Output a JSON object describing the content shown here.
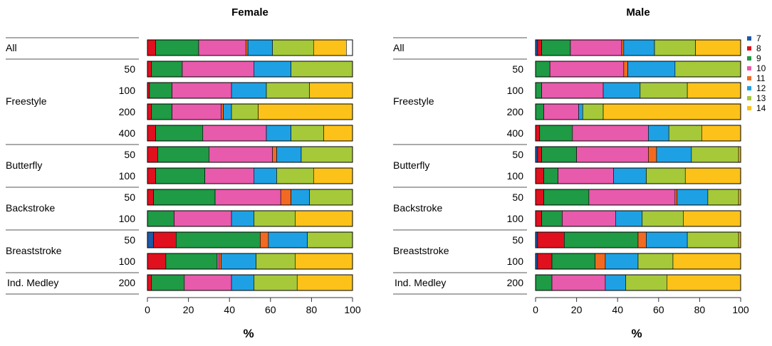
{
  "colors": {
    "7": "#1f5aa6",
    "8": "#e0101f",
    "9": "#1f9a45",
    "10": "#e85aab",
    "11": "#f26a21",
    "12": "#1ea1e4",
    "13": "#a6c93a",
    "14": "#fcc219"
  },
  "chart_data": [
    {
      "type": "bar",
      "orientation": "horizontal-stacked",
      "title": "Female",
      "xlabel": "%",
      "xlim": [
        0,
        100
      ],
      "xticks": [
        "0",
        "20",
        "40",
        "60",
        "80",
        "100"
      ],
      "groups": [
        "All",
        "Freestyle",
        "Butterfly",
        "Backstroke",
        "Breaststroke",
        "Ind. Medley"
      ],
      "rows": [
        {
          "group": "All",
          "distance": "",
          "values": [
            0,
            4,
            21,
            23,
            1,
            12,
            20,
            16
          ]
        },
        {
          "group": "Freestyle",
          "distance": "50",
          "values": [
            0,
            2,
            15,
            35,
            0,
            18,
            30,
            0
          ]
        },
        {
          "group": "Freestyle",
          "distance": "100",
          "values": [
            0,
            1,
            11,
            29,
            0,
            17,
            21,
            21
          ]
        },
        {
          "group": "Freestyle",
          "distance": "200",
          "values": [
            0,
            2,
            10,
            24,
            1,
            4,
            13,
            46
          ]
        },
        {
          "group": "Freestyle",
          "distance": "400",
          "values": [
            0,
            4,
            23,
            31,
            0,
            12,
            16,
            14
          ]
        },
        {
          "group": "Butterfly",
          "distance": "50",
          "values": [
            0,
            5,
            25,
            31,
            2,
            12,
            25,
            0
          ]
        },
        {
          "group": "Butterfly",
          "distance": "100",
          "values": [
            0,
            4,
            24,
            24,
            0,
            11,
            18,
            19
          ]
        },
        {
          "group": "Backstroke",
          "distance": "50",
          "values": [
            0,
            3,
            30,
            32,
            5,
            9,
            21,
            0
          ]
        },
        {
          "group": "Backstroke",
          "distance": "100",
          "values": [
            0,
            0,
            13,
            28,
            0,
            11,
            20,
            28
          ]
        },
        {
          "group": "Breaststroke",
          "distance": "50",
          "values": [
            3,
            11,
            41,
            0,
            4,
            19,
            22,
            0
          ]
        },
        {
          "group": "Breaststroke",
          "distance": "100",
          "values": [
            0,
            9,
            25,
            1,
            1,
            17,
            19,
            28
          ]
        },
        {
          "group": "Ind. Medley",
          "distance": "200",
          "values": [
            0,
            2,
            16,
            23,
            0,
            11,
            21,
            27
          ]
        }
      ]
    },
    {
      "type": "bar",
      "orientation": "horizontal-stacked",
      "title": "Male",
      "xlabel": "%",
      "xlim": [
        0,
        100
      ],
      "xticks": [
        "0",
        "20",
        "40",
        "60",
        "80",
        "100"
      ],
      "groups": [
        "All",
        "Freestyle",
        "Butterfly",
        "Backstroke",
        "Breaststroke",
        "Ind. Medley"
      ],
      "legend": {
        "title": "",
        "entries": [
          "7",
          "8",
          "9",
          "10",
          "11",
          "12",
          "13",
          "14"
        ],
        "placement": "top-right"
      },
      "rows": [
        {
          "group": "All",
          "distance": "",
          "values": [
            1,
            2,
            14,
            25,
            1,
            15,
            20,
            22
          ]
        },
        {
          "group": "Freestyle",
          "distance": "50",
          "values": [
            0,
            0,
            7,
            36,
            2,
            23,
            32,
            0
          ]
        },
        {
          "group": "Freestyle",
          "distance": "100",
          "values": [
            0,
            0,
            3,
            30,
            0,
            18,
            23,
            26
          ]
        },
        {
          "group": "Freestyle",
          "distance": "200",
          "values": [
            0,
            0,
            4,
            17,
            0,
            2,
            10,
            67
          ]
        },
        {
          "group": "Freestyle",
          "distance": "400",
          "values": [
            0,
            2,
            16,
            37,
            0,
            10,
            16,
            19
          ]
        },
        {
          "group": "Butterfly",
          "distance": "50",
          "values": [
            1,
            2,
            17,
            35,
            4,
            17,
            23,
            1
          ]
        },
        {
          "group": "Butterfly",
          "distance": "100",
          "values": [
            0,
            4,
            7,
            27,
            0,
            16,
            19,
            27
          ]
        },
        {
          "group": "Backstroke",
          "distance": "50",
          "values": [
            0,
            4,
            22,
            42,
            1,
            15,
            15,
            1
          ]
        },
        {
          "group": "Backstroke",
          "distance": "100",
          "values": [
            0,
            3,
            10,
            26,
            0,
            13,
            20,
            28
          ]
        },
        {
          "group": "Breaststroke",
          "distance": "50",
          "values": [
            1,
            13,
            36,
            0,
            4,
            20,
            25,
            1
          ]
        },
        {
          "group": "Breaststroke",
          "distance": "100",
          "values": [
            1,
            7,
            21,
            0,
            5,
            16,
            17,
            33
          ]
        },
        {
          "group": "Ind. Medley",
          "distance": "200",
          "values": [
            0,
            0,
            8,
            26,
            0,
            10,
            20,
            36
          ]
        }
      ]
    }
  ]
}
